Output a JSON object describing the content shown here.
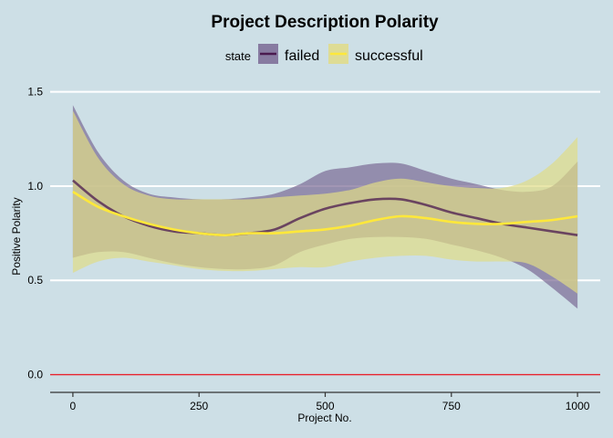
{
  "chart_data": {
    "type": "line",
    "title": "Project Description Polarity",
    "xlabel": "Project No.",
    "ylabel": "Positive Polarity",
    "xlim": [
      -45,
      1045
    ],
    "ylim": [
      -0.07,
      1.6
    ],
    "x_ticks": [
      0,
      250,
      500,
      750,
      1000
    ],
    "x_tick_labels": [
      "0",
      "250",
      "500",
      "750",
      "1000"
    ],
    "y_ticks": [
      0.0,
      0.5,
      1.0,
      1.5
    ],
    "y_tick_labels": [
      "0.0",
      "0.5",
      "1.0",
      "1.5"
    ],
    "grid": true,
    "reference_line": {
      "y": 0,
      "color": "#e8222e"
    },
    "legend": {
      "title": "state",
      "position": "top"
    },
    "series": [
      {
        "name": "failed",
        "color": "#4a1a4f",
        "fill": "#7a6a94",
        "x": [
          0,
          50,
          100,
          150,
          200,
          250,
          300,
          350,
          400,
          450,
          500,
          550,
          600,
          650,
          700,
          750,
          800,
          850,
          900,
          950,
          1000
        ],
        "y": [
          1.03,
          0.92,
          0.84,
          0.79,
          0.76,
          0.75,
          0.74,
          0.75,
          0.77,
          0.83,
          0.88,
          0.91,
          0.93,
          0.93,
          0.9,
          0.86,
          0.83,
          0.8,
          0.78,
          0.76,
          0.74
        ],
        "upper": [
          1.43,
          1.18,
          1.03,
          0.96,
          0.94,
          0.93,
          0.93,
          0.94,
          0.96,
          1.01,
          1.08,
          1.1,
          1.12,
          1.12,
          1.08,
          1.04,
          1.01,
          0.98,
          0.97,
          1.0,
          1.13
        ],
        "lower": [
          0.62,
          0.65,
          0.65,
          0.62,
          0.59,
          0.57,
          0.56,
          0.56,
          0.58,
          0.65,
          0.69,
          0.72,
          0.73,
          0.73,
          0.72,
          0.69,
          0.66,
          0.62,
          0.56,
          0.46,
          0.35
        ]
      },
      {
        "name": "successful",
        "color": "#ffe83a",
        "fill": "#e0dc86",
        "x": [
          0,
          50,
          100,
          150,
          200,
          250,
          300,
          350,
          400,
          450,
          500,
          550,
          600,
          650,
          700,
          750,
          800,
          850,
          900,
          950,
          1000
        ],
        "y": [
          0.97,
          0.89,
          0.84,
          0.8,
          0.77,
          0.75,
          0.74,
          0.75,
          0.75,
          0.76,
          0.77,
          0.79,
          0.82,
          0.84,
          0.83,
          0.81,
          0.8,
          0.8,
          0.81,
          0.82,
          0.84
        ],
        "upper": [
          1.4,
          1.15,
          1.01,
          0.95,
          0.93,
          0.93,
          0.93,
          0.93,
          0.94,
          0.95,
          0.96,
          0.98,
          1.02,
          1.04,
          1.02,
          1.0,
          0.99,
          0.99,
          1.03,
          1.12,
          1.26
        ],
        "lower": [
          0.54,
          0.6,
          0.62,
          0.6,
          0.58,
          0.56,
          0.55,
          0.55,
          0.56,
          0.57,
          0.57,
          0.6,
          0.62,
          0.63,
          0.63,
          0.61,
          0.6,
          0.6,
          0.59,
          0.52,
          0.43
        ]
      }
    ]
  }
}
